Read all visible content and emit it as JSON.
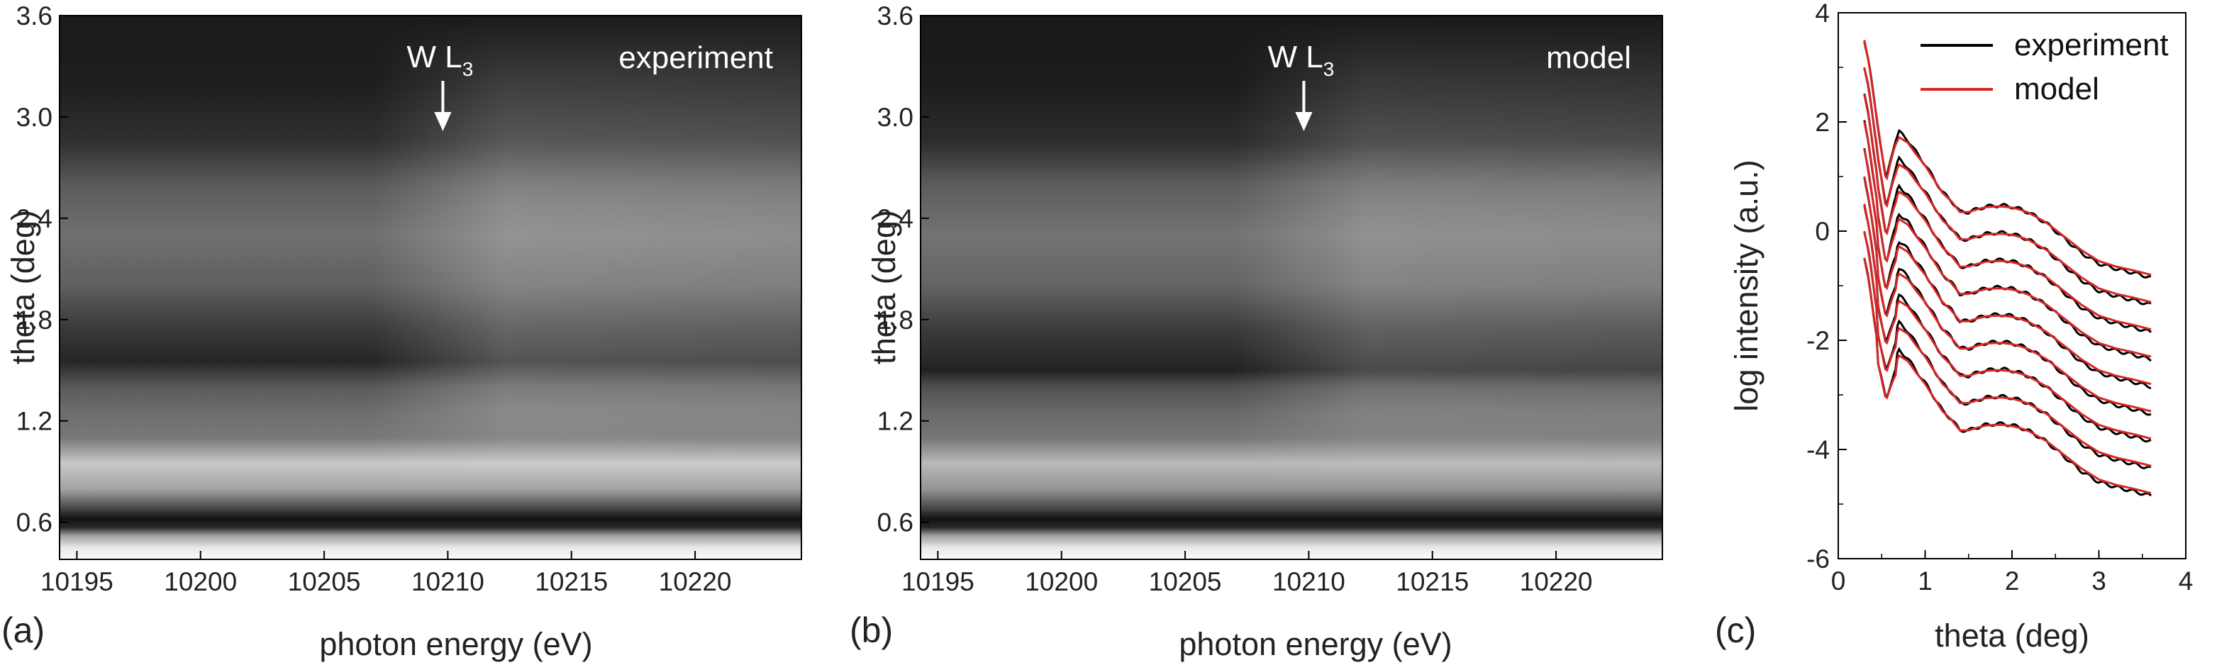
{
  "chart_data": [
    {
      "type": "heatmap",
      "panel_label": "(a)",
      "inset_label": "experiment",
      "annotation": {
        "text": "W L",
        "subscript": "3",
        "energy": 10209.8
      },
      "xlabel": "photon energy (eV)",
      "ylabel": "theta (deg)",
      "xlim": [
        10194.3,
        10224.3
      ],
      "ylim": [
        0.38,
        3.6
      ],
      "xticks": [
        "10195",
        "10200",
        "10205",
        "10210",
        "10215",
        "10220"
      ],
      "yticks": [
        "0.6",
        "1.2",
        "1.8",
        "2.4",
        "3.0",
        "3.6"
      ],
      "intensity_profile_theta": [
        {
          "theta": 0.38,
          "gray": 252
        },
        {
          "theta": 0.45,
          "gray": 232
        },
        {
          "theta": 0.52,
          "gray": 160
        },
        {
          "theta": 0.57,
          "gray": 40
        },
        {
          "theta": 0.62,
          "gray": 18
        },
        {
          "theta": 0.68,
          "gray": 70
        },
        {
          "theta": 0.8,
          "gray": 165
        },
        {
          "theta": 0.95,
          "gray": 200
        },
        {
          "theta": 1.1,
          "gray": 120
        },
        {
          "theta": 1.25,
          "gray": 110
        },
        {
          "theta": 1.4,
          "gray": 90
        },
        {
          "theta": 1.55,
          "gray": 38
        },
        {
          "theta": 1.75,
          "gray": 58
        },
        {
          "theta": 2.0,
          "gray": 95
        },
        {
          "theta": 2.3,
          "gray": 112
        },
        {
          "theta": 2.6,
          "gray": 90
        },
        {
          "theta": 2.85,
          "gray": 48
        },
        {
          "theta": 3.2,
          "gray": 30
        },
        {
          "theta": 3.6,
          "gray": 27
        }
      ],
      "edge_brightening": 0.25
    },
    {
      "type": "heatmap",
      "panel_label": "(b)",
      "inset_label": "model",
      "annotation": {
        "text": "W L",
        "subscript": "3",
        "energy": 10209.8
      },
      "xlabel": "photon energy (eV)",
      "ylabel": "theta (deg)",
      "xlim": [
        10194.3,
        10224.3
      ],
      "ylim": [
        0.38,
        3.6
      ],
      "xticks": [
        "10195",
        "10200",
        "10205",
        "10210",
        "10215",
        "10220"
      ],
      "yticks": [
        "0.6",
        "1.2",
        "1.8",
        "2.4",
        "3.0",
        "3.6"
      ],
      "intensity_profile_theta": [
        {
          "theta": 0.38,
          "gray": 252
        },
        {
          "theta": 0.45,
          "gray": 232
        },
        {
          "theta": 0.52,
          "gray": 160
        },
        {
          "theta": 0.57,
          "gray": 40
        },
        {
          "theta": 0.62,
          "gray": 18
        },
        {
          "theta": 0.68,
          "gray": 70
        },
        {
          "theta": 0.8,
          "gray": 150
        },
        {
          "theta": 0.95,
          "gray": 185
        },
        {
          "theta": 1.1,
          "gray": 118
        },
        {
          "theta": 1.25,
          "gray": 105
        },
        {
          "theta": 1.4,
          "gray": 80
        },
        {
          "theta": 1.5,
          "gray": 34
        },
        {
          "theta": 1.75,
          "gray": 60
        },
        {
          "theta": 2.0,
          "gray": 100
        },
        {
          "theta": 2.3,
          "gray": 115
        },
        {
          "theta": 2.6,
          "gray": 92
        },
        {
          "theta": 2.85,
          "gray": 45
        },
        {
          "theta": 3.2,
          "gray": 28
        },
        {
          "theta": 3.6,
          "gray": 25
        }
      ],
      "edge_brightening": 0.22
    },
    {
      "type": "line",
      "panel_label": "(c)",
      "xlabel": "theta (deg)",
      "ylabel": "log intensity (a.u.)",
      "xlim": [
        0,
        4
      ],
      "ylim": [
        -6,
        4
      ],
      "xticks": [
        0,
        1,
        2,
        3,
        4
      ],
      "yticks": [
        -6,
        -4,
        -2,
        0,
        2,
        4
      ],
      "legend": {
        "position": "top-right",
        "entries": [
          {
            "name": "experiment",
            "color": "#000000"
          },
          {
            "name": "model",
            "color": "#d62728"
          }
        ]
      },
      "curve_offsets": [
        0,
        -0.5,
        -1.0,
        -1.5,
        -2.0,
        -2.5,
        -3.0,
        -3.5,
        -4.0
      ],
      "base_curve": {
        "theta": [
          0.3,
          0.35,
          0.4,
          0.45,
          0.5,
          0.55,
          0.6,
          0.65,
          0.7,
          0.8,
          0.9,
          1.0,
          1.1,
          1.2,
          1.3,
          1.4,
          1.5,
          1.6,
          1.7,
          1.8,
          1.9,
          2.0,
          2.1,
          2.2,
          2.4,
          2.6,
          2.8,
          3.0,
          3.2,
          3.4,
          3.6
        ],
        "log_intensity": [
          3.5,
          3.1,
          2.55,
          2.0,
          1.45,
          0.9,
          1.25,
          1.55,
          1.72,
          1.62,
          1.4,
          1.2,
          0.95,
          0.7,
          0.55,
          0.35,
          0.35,
          0.4,
          0.44,
          0.45,
          0.45,
          0.43,
          0.39,
          0.33,
          0.15,
          -0.1,
          -0.35,
          -0.55,
          -0.65,
          -0.72,
          -0.8
        ]
      },
      "experiment_delta": {
        "theta": [
          0.3,
          0.5,
          0.7,
          0.8,
          1.0,
          1.5,
          1.9,
          2.3,
          2.8,
          3.2,
          3.6
        ],
        "delta": [
          0.0,
          0.0,
          0.1,
          0.05,
          0.02,
          0.0,
          0.02,
          0.0,
          -0.05,
          -0.04,
          -0.05
        ]
      }
    }
  ]
}
